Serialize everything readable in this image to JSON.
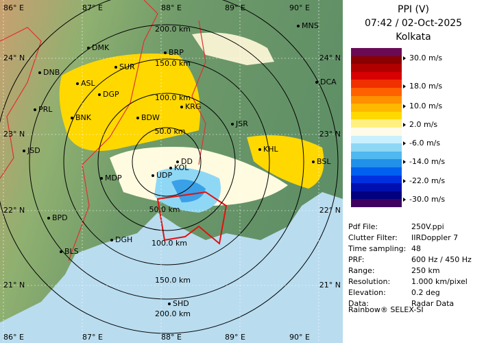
{
  "header": {
    "product": "PPI (V)",
    "timestamp": "07:42 / 02-Oct-2025",
    "station": "Kolkata"
  },
  "legend": {
    "labels": [
      "30.0 m/s",
      "18.0 m/s",
      "10.0 m/s",
      "2.0 m/s",
      "-6.0 m/s",
      "-14.0 m/s",
      "-22.0 m/s",
      "-30.0 m/s"
    ]
  },
  "info": {
    "rows": [
      [
        "Pdf File:",
        "250V.ppi"
      ],
      [
        "Clutter Filter:",
        "IIRDoppler 7"
      ],
      [
        "Time sampling:",
        "48"
      ],
      [
        "PRF:",
        "600 Hz / 450 Hz"
      ],
      [
        "Range:",
        "250 km"
      ],
      [
        "Resolution:",
        "1.000 km/pixel"
      ],
      [
        "Elevation:",
        "0.2 deg"
      ],
      [
        "Data:",
        "Radar Data"
      ]
    ]
  },
  "footer": "Rainbow® SELEX-SI",
  "map": {
    "lon_labels_top": [
      "86° E",
      "87° E",
      "88° E",
      "89° E",
      "90° E"
    ],
    "lon_labels_bottom": [
      "86° E",
      "87° E",
      "88° E",
      "89° E",
      "90° E"
    ],
    "lat_labels_left": [
      "24° N",
      "23° N",
      "22° N",
      "21° N"
    ],
    "lat_labels_right": [
      "24° N",
      "23° N",
      "22° N",
      "21° N"
    ],
    "range_labels": [
      "200.0 km",
      "150.0 km",
      "100.0 km",
      "50.0 km",
      "50.0 km",
      "100.0 km",
      "150.0 km",
      "200.0 km"
    ],
    "cities": [
      "MNS",
      "DMK",
      "BRP",
      "SUR",
      "DNB",
      "ASL",
      "DGP",
      "DCA",
      "KRG",
      "PRL",
      "BNK",
      "BDW",
      "JSR",
      "JSD",
      "KHL",
      "BSL",
      "DD",
      "KOL",
      "MDP",
      "UDP",
      "BPD",
      "DGH",
      "BLS",
      "SHD"
    ]
  }
}
